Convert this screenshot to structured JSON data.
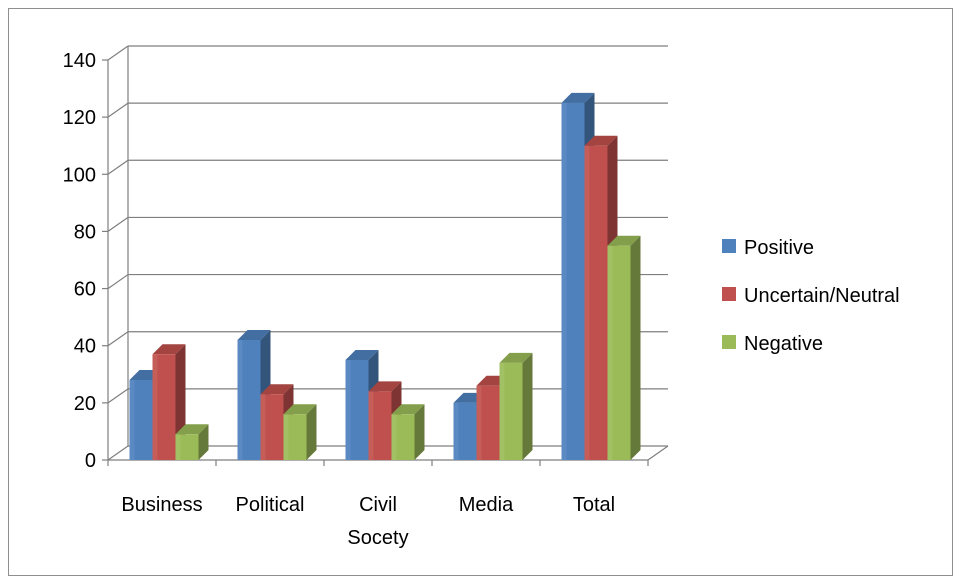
{
  "chart_data": {
    "type": "bar",
    "style": "3d-clustered-column",
    "title": "",
    "xlabel": "",
    "ylabel": "",
    "categories": [
      "Business",
      "Political",
      "Civil Socety",
      "Media",
      "Total"
    ],
    "category_lines": [
      [
        "Business"
      ],
      [
        "Political"
      ],
      [
        "Civil",
        "Socety"
      ],
      [
        "Media"
      ],
      [
        "Total"
      ]
    ],
    "series": [
      {
        "name": "Positive",
        "values": [
          28,
          42,
          35,
          20,
          125
        ],
        "color": "#4f81bd"
      },
      {
        "name": "Uncertain/Neutral",
        "values": [
          37,
          23,
          24,
          26,
          110
        ],
        "color": "#c0504d"
      },
      {
        "name": "Negative",
        "values": [
          9,
          16,
          16,
          34,
          75
        ],
        "color": "#9bbb59"
      }
    ],
    "ylim": [
      0,
      140
    ],
    "yticks": [
      "0",
      "20",
      "40",
      "60",
      "80",
      "100",
      "120",
      "140"
    ],
    "grid": true,
    "legend_position": "right"
  }
}
